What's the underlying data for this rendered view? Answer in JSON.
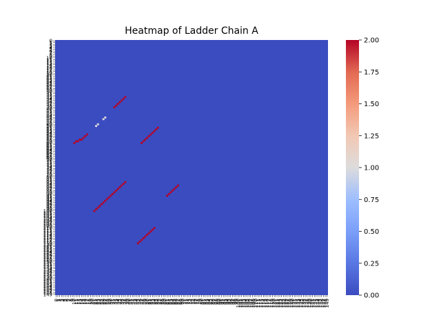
{
  "chart_data": {
    "type": "heatmap",
    "title": "Heatmap of Ladder Chain A",
    "xlabel": "",
    "ylabel": "",
    "grid_size": 150,
    "background_value": 0,
    "cells": [
      {
        "row": 33,
        "col": 38,
        "value": 2
      },
      {
        "row": 34,
        "col": 37,
        "value": 2
      },
      {
        "row": 35,
        "col": 36,
        "value": 2
      },
      {
        "row": 36,
        "col": 35,
        "value": 2
      },
      {
        "row": 37,
        "col": 34,
        "value": 2
      },
      {
        "row": 38,
        "col": 33,
        "value": 2
      },
      {
        "row": 39,
        "col": 32,
        "value": 2
      },
      {
        "row": 45,
        "col": 27,
        "value": 1
      },
      {
        "row": 46,
        "col": 26,
        "value": 1
      },
      {
        "row": 49,
        "col": 23,
        "value": 1
      },
      {
        "row": 50,
        "col": 22,
        "value": 1
      },
      {
        "row": 55,
        "col": 17,
        "value": 2
      },
      {
        "row": 56,
        "col": 16,
        "value": 2
      },
      {
        "row": 57,
        "col": 15,
        "value": 2
      },
      {
        "row": 58,
        "col": 14,
        "value": 2
      },
      {
        "row": 58,
        "col": 13,
        "value": 2
      },
      {
        "row": 59,
        "col": 12,
        "value": 2
      },
      {
        "row": 59,
        "col": 11,
        "value": 2
      },
      {
        "row": 60,
        "col": 10,
        "value": 2
      },
      {
        "row": 51,
        "col": 56,
        "value": 2
      },
      {
        "row": 52,
        "col": 55,
        "value": 2
      },
      {
        "row": 53,
        "col": 54,
        "value": 2
      },
      {
        "row": 54,
        "col": 53,
        "value": 2
      },
      {
        "row": 55,
        "col": 52,
        "value": 2
      },
      {
        "row": 56,
        "col": 51,
        "value": 2
      },
      {
        "row": 57,
        "col": 50,
        "value": 2
      },
      {
        "row": 58,
        "col": 49,
        "value": 2
      },
      {
        "row": 59,
        "col": 48,
        "value": 2
      },
      {
        "row": 60,
        "col": 47,
        "value": 2
      },
      {
        "row": 83,
        "col": 38,
        "value": 2
      },
      {
        "row": 84,
        "col": 37,
        "value": 2
      },
      {
        "row": 85,
        "col": 36,
        "value": 2
      },
      {
        "row": 86,
        "col": 35,
        "value": 2
      },
      {
        "row": 87,
        "col": 34,
        "value": 2
      },
      {
        "row": 88,
        "col": 33,
        "value": 2
      },
      {
        "row": 89,
        "col": 32,
        "value": 2
      },
      {
        "row": 90,
        "col": 31,
        "value": 2
      },
      {
        "row": 91,
        "col": 30,
        "value": 2
      },
      {
        "row": 92,
        "col": 29,
        "value": 2
      },
      {
        "row": 93,
        "col": 28,
        "value": 2
      },
      {
        "row": 94,
        "col": 27,
        "value": 2
      },
      {
        "row": 95,
        "col": 26,
        "value": 2
      },
      {
        "row": 96,
        "col": 25,
        "value": 2
      },
      {
        "row": 97,
        "col": 24,
        "value": 2
      },
      {
        "row": 98,
        "col": 23,
        "value": 2
      },
      {
        "row": 99,
        "col": 22,
        "value": 2
      },
      {
        "row": 100,
        "col": 21,
        "value": 2
      },
      {
        "row": 85,
        "col": 67,
        "value": 2
      },
      {
        "row": 86,
        "col": 66,
        "value": 2
      },
      {
        "row": 87,
        "col": 65,
        "value": 2
      },
      {
        "row": 88,
        "col": 64,
        "value": 2
      },
      {
        "row": 89,
        "col": 63,
        "value": 2
      },
      {
        "row": 90,
        "col": 62,
        "value": 2
      },
      {
        "row": 91,
        "col": 61,
        "value": 2
      },
      {
        "row": 110,
        "col": 54,
        "value": 2
      },
      {
        "row": 111,
        "col": 53,
        "value": 2
      },
      {
        "row": 112,
        "col": 52,
        "value": 2
      },
      {
        "row": 113,
        "col": 51,
        "value": 2
      },
      {
        "row": 114,
        "col": 50,
        "value": 2
      },
      {
        "row": 115,
        "col": 49,
        "value": 2
      },
      {
        "row": 116,
        "col": 48,
        "value": 2
      },
      {
        "row": 117,
        "col": 47,
        "value": 2
      },
      {
        "row": 118,
        "col": 46,
        "value": 2
      },
      {
        "row": 119,
        "col": 45,
        "value": 2
      }
    ],
    "colorbar": {
      "colormap": "coolwarm",
      "range": [
        0,
        2
      ],
      "ticks": [
        "0.00",
        "0.25",
        "0.50",
        "0.75",
        "1.00",
        "1.25",
        "1.50",
        "1.75",
        "2.00"
      ]
    },
    "colors": {
      "low": "#3b4cc0",
      "mid": "#dddcdc",
      "high": "#b40426"
    }
  }
}
